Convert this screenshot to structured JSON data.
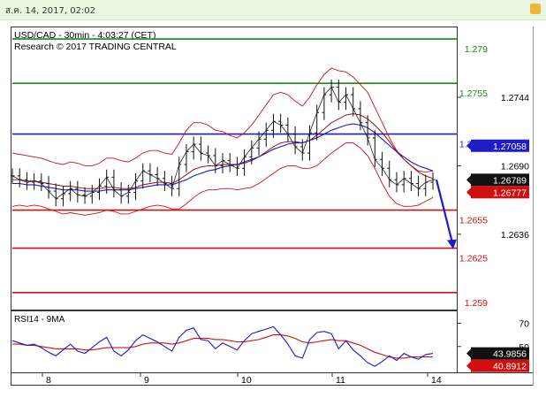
{
  "topbar": {
    "date_text": "ส.ค. 14, 2017, 02:02"
  },
  "chart_data": {
    "type": "line",
    "title": "USD/CAD - 30min - 4:03:27 (CET)",
    "subtitle": "Research © 2017 TRADING CENTRAL",
    "xlabels": [
      "8",
      "9",
      "10",
      "11",
      "14"
    ],
    "y_ticks": [
      "1.2744",
      "1.2690",
      "1.2636"
    ],
    "ylim": [
      1.2578,
      1.2797
    ],
    "levels": [
      {
        "label": "1.279",
        "value": 1.279,
        "color": "#1a8a1a"
      },
      {
        "label": "1.2755",
        "value": 1.2755,
        "color": "#1a8a1a"
      },
      {
        "label": "1.2715",
        "value": 1.2715,
        "color": "#1c1cc8"
      },
      {
        "label": "1.2655",
        "value": 1.2655,
        "color": "#d01010"
      },
      {
        "label": "1.2625",
        "value": 1.2625,
        "color": "#d01010"
      },
      {
        "label": "1.259",
        "value": 1.259,
        "color": "#d01010"
      }
    ],
    "price_badges": [
      {
        "label": "1.27058",
        "value": 1.27058,
        "bg": "#1c1cc8",
        "fg": "#ffffff"
      },
      {
        "label": "1.26789",
        "value": 1.26789,
        "bg": "#111111",
        "fg": "#ffffff"
      },
      {
        "label": "1.26777",
        "value": 1.26777,
        "bg": "#d01010",
        "fg": "#ffffff"
      }
    ],
    "close_series": [
      1.2682,
      1.2679,
      1.2677,
      1.2678,
      1.2676,
      1.267,
      1.2664,
      1.2668,
      1.2672,
      1.2667,
      1.2666,
      1.2669,
      1.2674,
      1.2681,
      1.2671,
      1.2666,
      1.2669,
      1.2678,
      1.2686,
      1.2683,
      1.268,
      1.2676,
      1.2672,
      1.2691,
      1.2701,
      1.2707,
      1.27,
      1.2698,
      1.269,
      1.2694,
      1.2691,
      1.2688,
      1.2697,
      1.2704,
      1.2711,
      1.2718,
      1.2725,
      1.2722,
      1.2715,
      1.2705,
      1.27,
      1.2716,
      1.2732,
      1.2746,
      1.2752,
      1.274,
      1.2746,
      1.2735,
      1.2724,
      1.2712,
      1.2695,
      1.2688,
      1.2679,
      1.2675,
      1.268,
      1.2676,
      1.2672,
      1.2677,
      1.2679
    ],
    "bollinger": {
      "upper": [
        1.27,
        1.2699,
        1.2698,
        1.2697,
        1.2696,
        1.2694,
        1.2692,
        1.2691,
        1.2693,
        1.2692,
        1.269,
        1.269,
        1.2692,
        1.2696,
        1.2696,
        1.2694,
        1.2693,
        1.2696,
        1.27,
        1.2702,
        1.2702,
        1.27,
        1.2699,
        1.2708,
        1.2718,
        1.2724,
        1.2724,
        1.2722,
        1.2718,
        1.2717,
        1.2714,
        1.2712,
        1.2716,
        1.2722,
        1.273,
        1.2738,
        1.2746,
        1.2748,
        1.2746,
        1.2741,
        1.2737,
        1.2744,
        1.2754,
        1.2762,
        1.2767,
        1.2765,
        1.2764,
        1.276,
        1.2754,
        1.2748,
        1.2736,
        1.2724,
        1.2712,
        1.2702,
        1.2695,
        1.269,
        1.2686,
        1.2685,
        1.2686
      ],
      "middle": [
        1.2679,
        1.2679,
        1.2678,
        1.2678,
        1.2677,
        1.2676,
        1.2675,
        1.2674,
        1.2674,
        1.2673,
        1.2672,
        1.2672,
        1.2672,
        1.2673,
        1.2673,
        1.2672,
        1.2672,
        1.2673,
        1.2675,
        1.2676,
        1.2677,
        1.2677,
        1.2676,
        1.2679,
        1.2683,
        1.2687,
        1.2689,
        1.269,
        1.269,
        1.2691,
        1.2691,
        1.2691,
        1.2692,
        1.2694,
        1.2697,
        1.2701,
        1.2705,
        1.2708,
        1.2709,
        1.2709,
        1.2708,
        1.271,
        1.2714,
        1.2719,
        1.2724,
        1.2727,
        1.273,
        1.2731,
        1.273,
        1.2727,
        1.2722,
        1.2716,
        1.2709,
        1.2701,
        1.2695,
        1.269,
        1.2685,
        1.2682,
        1.268
      ],
      "lower": [
        1.2658,
        1.2659,
        1.2658,
        1.2659,
        1.2658,
        1.2656,
        1.2654,
        1.2652,
        1.2653,
        1.2652,
        1.2651,
        1.2652,
        1.2653,
        1.2655,
        1.2654,
        1.2652,
        1.2652,
        1.2654,
        1.2656,
        1.2658,
        1.2659,
        1.2658,
        1.2656,
        1.2656,
        1.266,
        1.2665,
        1.2669,
        1.2671,
        1.2671,
        1.2672,
        1.2672,
        1.2671,
        1.2672,
        1.2673,
        1.2676,
        1.268,
        1.2684,
        1.2688,
        1.269,
        1.269,
        1.2688,
        1.2688,
        1.269,
        1.2695,
        1.27,
        1.2704,
        1.2708,
        1.2708,
        1.2704,
        1.2698,
        1.2688,
        1.2676,
        1.2666,
        1.266,
        1.2658,
        1.2658,
        1.2659,
        1.2662,
        1.2665
      ]
    },
    "ma_series": [
      1.2676,
      1.2676,
      1.2675,
      1.2675,
      1.2674,
      1.2673,
      1.2672,
      1.2671,
      1.2671,
      1.2671,
      1.267,
      1.267,
      1.267,
      1.2671,
      1.2671,
      1.2671,
      1.2671,
      1.2672,
      1.2673,
      1.2674,
      1.2675,
      1.2675,
      1.2675,
      1.2677,
      1.2679,
      1.2682,
      1.2684,
      1.2686,
      1.2687,
      1.2689,
      1.269,
      1.2691,
      1.2693,
      1.2695,
      1.2697,
      1.27,
      1.2703,
      1.2705,
      1.2707,
      1.2708,
      1.2708,
      1.271,
      1.2712,
      1.2715,
      1.2718,
      1.272,
      1.2722,
      1.2723,
      1.2722,
      1.272,
      1.2716,
      1.2711,
      1.2706,
      1.2701,
      1.2697,
      1.2693,
      1.269,
      1.2688,
      1.2686
    ],
    "projection": {
      "from": 1.2679,
      "to": 1.2625
    },
    "rsi": {
      "title": "RSI14 - 9MA",
      "ylim": [
        30,
        78
      ],
      "ticks": [
        "70",
        "50"
      ],
      "badges": [
        {
          "label": "43.9856",
          "value": 43.9856,
          "bg": "#111111",
          "fg": "#ffffff"
        },
        {
          "label": "40.8912",
          "value": 40.8912,
          "bg": "#d01010",
          "fg": "#ffffff"
        }
      ],
      "rsi_series": [
        55,
        53,
        51,
        52,
        49,
        45,
        42,
        47,
        52,
        46,
        44,
        49,
        54,
        58,
        46,
        42,
        47,
        55,
        60,
        57,
        54,
        50,
        46,
        58,
        64,
        66,
        56,
        55,
        48,
        53,
        50,
        47,
        55,
        61,
        63,
        65,
        67,
        60,
        52,
        42,
        40,
        56,
        62,
        63,
        61,
        48,
        55,
        47,
        42,
        36,
        33,
        37,
        42,
        38,
        44,
        41,
        39,
        43,
        44
      ],
      "ma_series": [
        52,
        52,
        51,
        51,
        50,
        49,
        48,
        48,
        48,
        48,
        47,
        47,
        48,
        49,
        49,
        49,
        49,
        50,
        52,
        53,
        53,
        53,
        52,
        53,
        55,
        57,
        57,
        57,
        56,
        56,
        55,
        54,
        54,
        55,
        56,
        58,
        60,
        60,
        59,
        57,
        54,
        53,
        54,
        55,
        56,
        55,
        55,
        53,
        51,
        48,
        45,
        43,
        41,
        40,
        40,
        41,
        41,
        41,
        41
      ]
    }
  }
}
